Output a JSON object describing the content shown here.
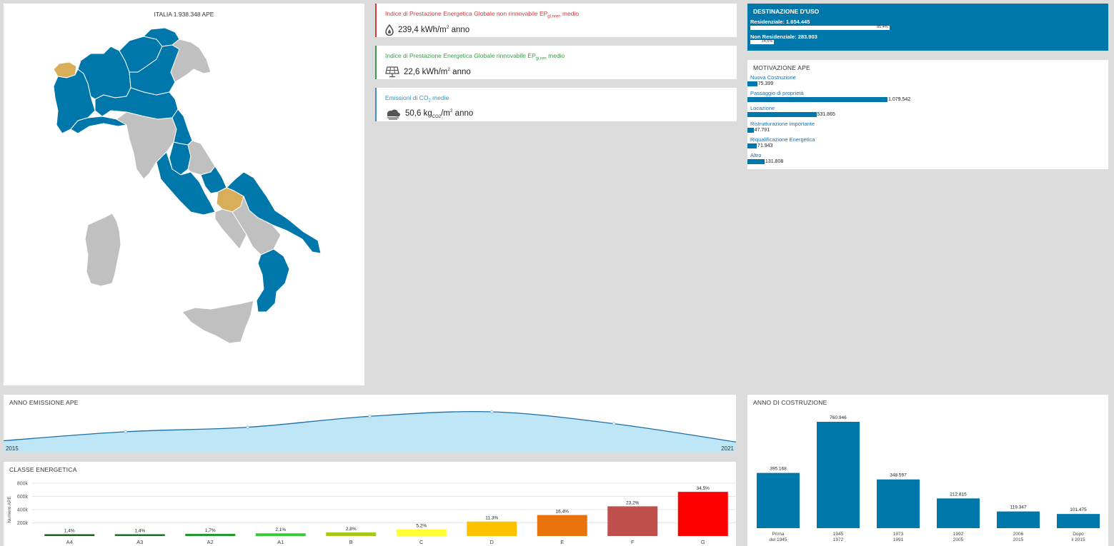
{
  "map": {
    "title": "ITALIA 1.938.348 APE",
    "colors": {
      "blue": "#0077aa",
      "gray": "#c0c0c0",
      "gold": "#d9ae5a",
      "border": "#ffffff"
    }
  },
  "kpis": [
    {
      "label_pre": "Indice di Prestazione Energetica Globale non rinnovabile EP",
      "label_sub": "gl,nren",
      "label_post": " medio",
      "value_pre": "239,4 kWh/m",
      "value_sup": "2",
      "value_post": " anno",
      "icon": "flame-drop-icon",
      "color": "#d9383a"
    },
    {
      "label_pre": "Indice di Prestazione Energetica Globale rinnovabile EP",
      "label_sub": "gl,ren",
      "label_post": " medio",
      "value_pre": "22,6 kWh/m",
      "value_sup": "2",
      "value_post": " anno",
      "icon": "solar-panel-icon",
      "color": "#3f9a48"
    },
    {
      "label_pre": "Emissioni di CO",
      "label_sub": "2",
      "label_post": " medie",
      "value_pre": "50,6 kg",
      "value_sub": "CO2",
      "value_post": "/m",
      "value_sup": "2",
      "value_post2": " anno",
      "icon": "cloud-icon",
      "color": "#3c8fbf"
    }
  ],
  "destinazione": {
    "title": "DESTINAZIONE D'USO",
    "items": [
      {
        "label": "Residenziale: 1.654.445",
        "pct_label": "85,4%",
        "pct": 0.854
      },
      {
        "label": "Non Residenziale: 283.903",
        "pct_label": "14,6%",
        "pct": 0.146
      }
    ]
  },
  "motivazione": {
    "title": "MOTIVAZIONE APE",
    "items": [
      {
        "label": "Nuova Costruzione",
        "value": 75399,
        "value_label": "75.399"
      },
      {
        "label": "Passaggio di proprietà",
        "value": 1079542,
        "value_label": "1.079.542"
      },
      {
        "label": "Locazione",
        "value": 531865,
        "value_label": "531.865"
      },
      {
        "label": "Ristrutturazione importante",
        "value": 47791,
        "value_label": "47.791"
      },
      {
        "label": "Riqualificazione Energetica",
        "value": 71943,
        "value_label": "71.943"
      },
      {
        "label": "Altro",
        "value": 131808,
        "value_label": "131.808"
      }
    ]
  },
  "anno_emissione": {
    "title": "ANNO EMISSIONE APE",
    "start_label": "2015",
    "end_label": "2021",
    "fill": "#bfe6f7",
    "line": "#1a6fa8"
  },
  "chart_data": [
    {
      "type": "area",
      "x": [
        2015,
        2016,
        2017,
        2018,
        2019,
        2020,
        2021
      ],
      "series": [
        {
          "values": [
            0.1,
            0.38,
            0.52,
            0.86,
            1.0,
            0.63,
            0.06
          ]
        }
      ],
      "xlabel": "",
      "ylabel": "",
      "grid": false
    },
    {
      "type": "bar",
      "title": "CLASSE ENERGETICA",
      "ylabel": "Numero APE",
      "ylim": [
        0,
        800000
      ],
      "yticks": [
        200000,
        400000,
        600000,
        800000
      ],
      "ytick_labels": [
        "200k",
        "400k",
        "600k",
        "800k"
      ],
      "categories": [
        "A4",
        "A3",
        "A2",
        "A1",
        "B",
        "C",
        "D",
        "E",
        "F",
        "G"
      ],
      "values": [
        27137,
        27137,
        32952,
        40705,
        54274,
        100794,
        219033,
        317889,
        449697,
        668730
      ],
      "value_labels": [
        "1,4%",
        "1,4%",
        "1,7%",
        "2,1%",
        "2,8%",
        "5,2%",
        "11,3%",
        "16,4%",
        "23,2%",
        "34,5%"
      ],
      "colors": [
        "#1f5f1f",
        "#1d6e2a",
        "#1f9a2a",
        "#33cc33",
        "#a6c817",
        "#ffff33",
        "#ffc200",
        "#e8720c",
        "#c0504d",
        "#ff0000"
      ],
      "grid": true
    },
    {
      "type": "bar",
      "title": "ANNO DI COSTRUZIONE",
      "categories": [
        "Prima del 1945",
        "1945 1972",
        "1973 1991",
        "1992 2005",
        "2006 2015",
        "Dopo il 2015"
      ],
      "category_lines": [
        [
          "Prima",
          "del 1945"
        ],
        [
          "1945",
          "1972"
        ],
        [
          "1973",
          "1991"
        ],
        [
          "1992",
          "2005"
        ],
        [
          "2006",
          "2015"
        ],
        [
          "Dopo",
          "il 2015"
        ]
      ],
      "values": [
        395168,
        760946,
        348597,
        212815,
        119347,
        101475
      ],
      "value_labels": [
        "395.168",
        "760.946",
        "348.597",
        "212.815",
        "119.347",
        "101.475"
      ],
      "color": "#0077aa",
      "grid": false
    }
  ]
}
